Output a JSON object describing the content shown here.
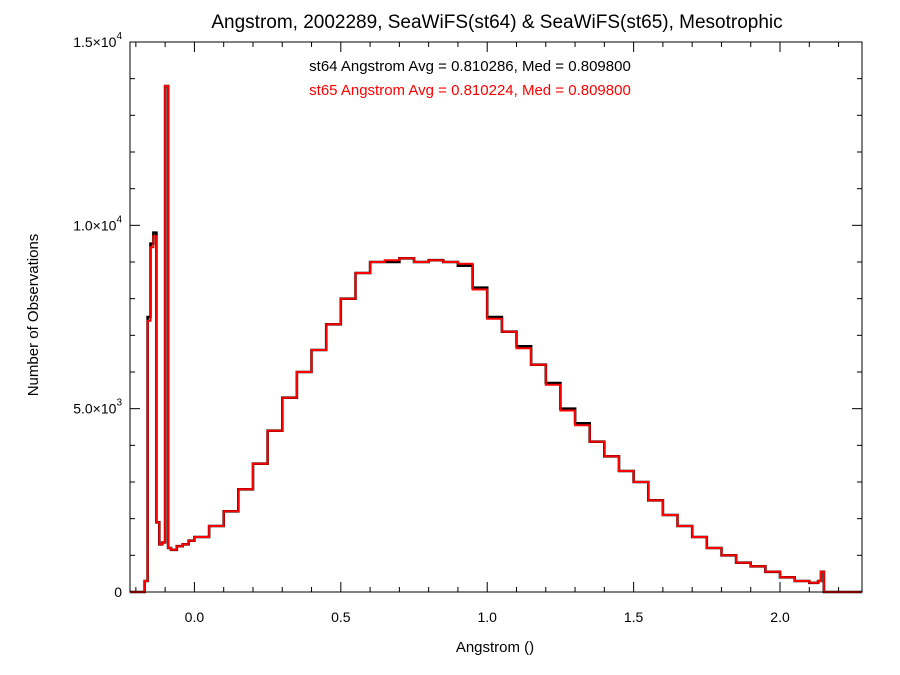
{
  "chart_data": {
    "type": "line",
    "title": "Angstrom, 2002289, SeaWiFS(st64) & SeaWiFS(st65), Mesotrophic",
    "xlabel": "Angstrom ()",
    "ylabel": "Number of Observations",
    "xlim": [
      -0.22,
      2.28
    ],
    "ylim": [
      0,
      15000
    ],
    "x_ticks": [
      0.0,
      0.5,
      1.0,
      1.5,
      2.0
    ],
    "x_tick_labels": [
      "0.0",
      "0.5",
      "1.0",
      "1.5",
      "2.0"
    ],
    "y_ticks": [
      0,
      5000,
      10000,
      15000
    ],
    "y_tick_labels": [
      {
        "mant": "0",
        "exp": ""
      },
      {
        "mant": "5.0×10",
        "exp": "3"
      },
      {
        "mant": "1.0×10",
        "exp": "4"
      },
      {
        "mant": "1.5×10",
        "exp": "4"
      }
    ],
    "annotations": [
      {
        "text": "st64 Angstrom Avg = 0.810286, Med = 0.809800",
        "color": "#000000"
      },
      {
        "text": "st65 Angstrom Avg = 0.810224, Med = 0.809800",
        "color": "#ff0000"
      }
    ],
    "series": [
      {
        "color": "#000000",
        "x": [
          -0.22,
          -0.2,
          -0.17,
          -0.16,
          -0.15,
          -0.14,
          -0.13,
          -0.12,
          -0.11,
          -0.1,
          -0.09,
          -0.08,
          -0.06,
          -0.04,
          -0.02,
          0.0,
          0.05,
          0.1,
          0.15,
          0.2,
          0.25,
          0.3,
          0.35,
          0.4,
          0.45,
          0.5,
          0.55,
          0.6,
          0.65,
          0.7,
          0.75,
          0.8,
          0.85,
          0.9,
          0.95,
          1.0,
          1.05,
          1.1,
          1.15,
          1.2,
          1.25,
          1.3,
          1.35,
          1.4,
          1.45,
          1.5,
          1.55,
          1.6,
          1.65,
          1.7,
          1.75,
          1.8,
          1.85,
          1.9,
          1.95,
          2.0,
          2.05,
          2.1,
          2.13,
          2.14,
          2.15,
          2.2,
          2.28
        ],
        "y": [
          0,
          0,
          300,
          7500,
          9500,
          9800,
          1900,
          1300,
          1350,
          13800,
          1200,
          1150,
          1250,
          1300,
          1400,
          1500,
          1800,
          2200,
          2800,
          3500,
          4400,
          5300,
          6000,
          6600,
          7300,
          8000,
          8700,
          9000,
          9000,
          9100,
          9000,
          9050,
          9000,
          8900,
          8300,
          7500,
          7100,
          6700,
          6200,
          5700,
          5000,
          4600,
          4100,
          3700,
          3300,
          3000,
          2500,
          2100,
          1800,
          1500,
          1200,
          1000,
          800,
          700,
          550,
          400,
          300,
          250,
          300,
          550,
          0,
          0,
          0
        ]
      },
      {
        "color": "#ff0000",
        "x": [
          -0.22,
          -0.2,
          -0.17,
          -0.16,
          -0.15,
          -0.14,
          -0.13,
          -0.12,
          -0.11,
          -0.1,
          -0.09,
          -0.08,
          -0.06,
          -0.04,
          -0.02,
          0.0,
          0.05,
          0.1,
          0.15,
          0.2,
          0.25,
          0.3,
          0.35,
          0.4,
          0.45,
          0.5,
          0.55,
          0.6,
          0.65,
          0.7,
          0.75,
          0.8,
          0.85,
          0.9,
          0.95,
          1.0,
          1.05,
          1.1,
          1.15,
          1.2,
          1.25,
          1.3,
          1.35,
          1.4,
          1.45,
          1.5,
          1.55,
          1.6,
          1.65,
          1.7,
          1.75,
          1.8,
          1.85,
          1.9,
          1.95,
          2.0,
          2.05,
          2.1,
          2.13,
          2.14,
          2.15,
          2.2,
          2.28
        ],
        "y": [
          0,
          0,
          300,
          7400,
          9400,
          9700,
          1900,
          1300,
          1350,
          13800,
          1200,
          1150,
          1250,
          1300,
          1400,
          1500,
          1800,
          2200,
          2800,
          3500,
          4400,
          5300,
          6000,
          6600,
          7300,
          8000,
          8700,
          9000,
          9050,
          9100,
          9000,
          9050,
          9000,
          8950,
          8250,
          7450,
          7100,
          6650,
          6200,
          5650,
          4950,
          4550,
          4100,
          3700,
          3300,
          3000,
          2500,
          2100,
          1800,
          1500,
          1200,
          1000,
          800,
          700,
          550,
          400,
          300,
          250,
          300,
          550,
          0,
          0,
          0
        ]
      }
    ]
  }
}
